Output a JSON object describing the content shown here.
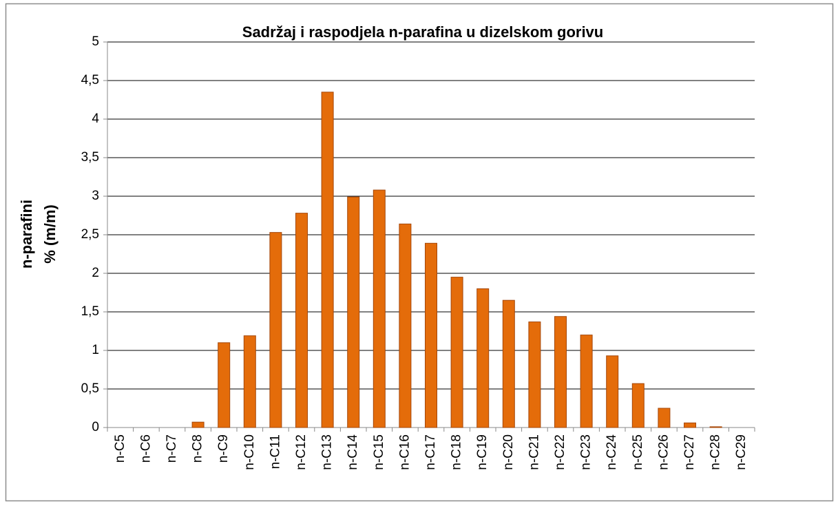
{
  "chart_data": {
    "type": "bar",
    "title": "Sadržaj i raspodjela n-parafina u dizelskom gorivu",
    "ylabel": [
      "n-parafini",
      "% (m/m)"
    ],
    "categories": [
      "n-C5",
      "n-C6",
      "n-C7",
      "n-C8",
      "n-C9",
      "n-C10",
      "n-C11",
      "n-C12",
      "n-C13",
      "n-C14",
      "n-C15",
      "n-C16",
      "n-C17",
      "n-C18",
      "n-C19",
      "n-C20",
      "n-C21",
      "n-C22",
      "n-C23",
      "n-C24",
      "n-C25",
      "n-C26",
      "n-C27",
      "n-C28",
      "n-C29"
    ],
    "values": [
      0,
      0,
      0,
      0.07,
      1.1,
      1.19,
      2.53,
      2.78,
      4.35,
      2.99,
      3.08,
      2.64,
      2.39,
      1.95,
      1.8,
      1.65,
      1.37,
      1.44,
      1.2,
      0.93,
      0.57,
      0.25,
      0.06,
      0.01,
      0
    ],
    "color": "#e46c0a",
    "ylim": [
      0,
      5
    ],
    "yticks": [
      0,
      {
        "value": 0.5,
        "label": "0,5"
      },
      1,
      {
        "value": 1.5,
        "label": "1,5"
      },
      2,
      {
        "value": 2.5,
        "label": "2,5"
      },
      3,
      {
        "value": 3.5,
        "label": "3,5"
      },
      4,
      {
        "value": 4.5,
        "label": "4,5"
      },
      5
    ],
    "grid": true
  }
}
